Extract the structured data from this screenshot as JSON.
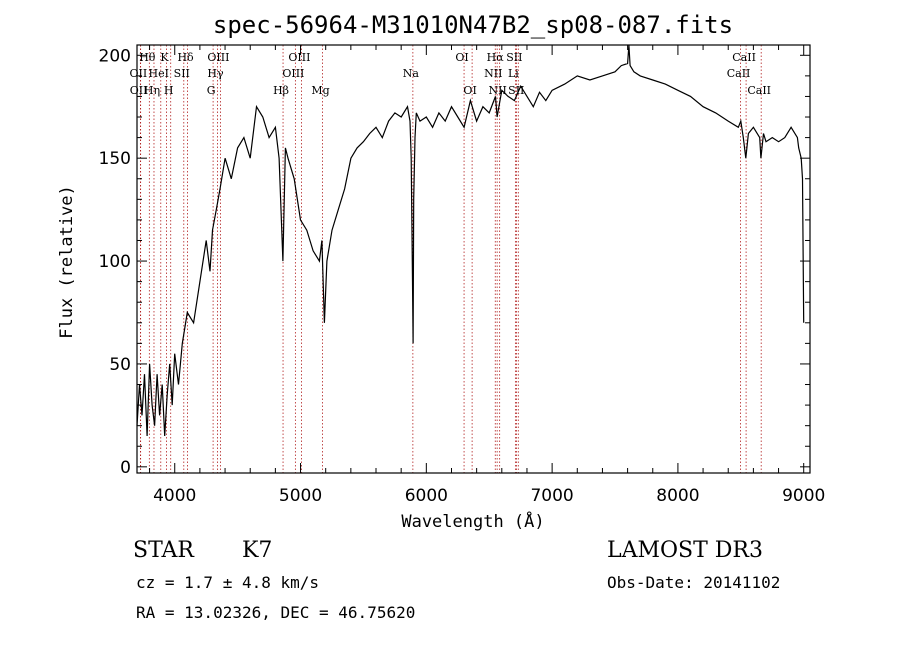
{
  "chart_data": {
    "type": "line",
    "title": "spec-56964-M31010N47B2_sp08-087.fits",
    "xlabel": "Wavelength (Å)",
    "ylabel": "Flux (relative)",
    "xlim": [
      3700,
      9050
    ],
    "ylim": [
      -3,
      205
    ],
    "x_ticks": [
      4000,
      5000,
      6000,
      7000,
      8000,
      9000
    ],
    "y_ticks": [
      0,
      50,
      100,
      150,
      200
    ],
    "grid": false,
    "line_color": "#000000",
    "marker_color": "#b22222",
    "series": [
      {
        "x": [
          3700,
          3720,
          3740,
          3760,
          3780,
          3800,
          3820,
          3840,
          3860,
          3880,
          3900,
          3920,
          3940,
          3960,
          3980,
          4000,
          4030,
          4060,
          4100,
          4150,
          4200,
          4250,
          4280,
          4300,
          4330,
          4360,
          4400,
          4450,
          4500,
          4550,
          4600,
          4650,
          4700,
          4750,
          4800,
          4830,
          4860,
          4880,
          4900,
          4950,
          5000,
          5050,
          5100,
          5150,
          5170,
          5190,
          5210,
          5250,
          5300,
          5350,
          5400,
          5450,
          5500,
          5550,
          5600,
          5650,
          5700,
          5750,
          5800,
          5850,
          5870,
          5880,
          5890,
          5895,
          5900,
          5910,
          5920,
          5950,
          6000,
          6050,
          6100,
          6150,
          6200,
          6250,
          6300,
          6350,
          6400,
          6450,
          6500,
          6550,
          6563,
          6600,
          6650,
          6700,
          6750,
          6800,
          6850,
          6900,
          6950,
          7000,
          7100,
          7200,
          7300,
          7400,
          7500,
          7550,
          7600,
          7610,
          7620,
          7650,
          7700,
          7800,
          7900,
          8000,
          8100,
          8200,
          8300,
          8400,
          8480,
          8500,
          8520,
          8540,
          8560,
          8600,
          8650,
          8660,
          8680,
          8700,
          8750,
          8800,
          8850,
          8900,
          8950,
          8960,
          8980,
          8990,
          9000
        ],
        "y": [
          20,
          40,
          25,
          45,
          15,
          50,
          30,
          20,
          45,
          25,
          40,
          15,
          35,
          50,
          30,
          55,
          40,
          60,
          75,
          70,
          90,
          110,
          95,
          115,
          125,
          135,
          150,
          140,
          155,
          160,
          150,
          175,
          170,
          160,
          165,
          150,
          100,
          155,
          150,
          140,
          120,
          115,
          105,
          100,
          110,
          70,
          100,
          115,
          125,
          135,
          150,
          155,
          158,
          162,
          165,
          160,
          168,
          172,
          170,
          175,
          168,
          150,
          90,
          60,
          130,
          160,
          172,
          168,
          170,
          165,
          172,
          168,
          175,
          170,
          165,
          178,
          168,
          175,
          172,
          180,
          170,
          183,
          180,
          178,
          185,
          180,
          175,
          182,
          178,
          183,
          186,
          190,
          188,
          190,
          192,
          195,
          196,
          205,
          195,
          192,
          190,
          188,
          186,
          183,
          180,
          175,
          172,
          168,
          165,
          168,
          160,
          150,
          162,
          165,
          160,
          150,
          162,
          158,
          160,
          158,
          160,
          165,
          160,
          155,
          150,
          140,
          70
        ]
      }
    ],
    "annotations": [
      {
        "label": "Hθ",
        "x": 3798,
        "row": 1
      },
      {
        "label": "OII",
        "x": 3727,
        "row": 2
      },
      {
        "label": "OII",
        "x": 3729,
        "row": 3
      },
      {
        "label": "Hη",
        "x": 3835,
        "row": 3
      },
      {
        "label": "K",
        "x": 3934,
        "row": 1
      },
      {
        "label": "HeI",
        "x": 3889,
        "row": 2
      },
      {
        "label": "H",
        "x": 3968,
        "row": 3
      },
      {
        "label": "Hδ",
        "x": 4102,
        "row": 1
      },
      {
        "label": "SII",
        "x": 4072,
        "row": 2
      },
      {
        "label": "OIII",
        "x": 4363,
        "row": 1
      },
      {
        "label": "Hγ",
        "x": 4340,
        "row": 2
      },
      {
        "label": "G",
        "x": 4305,
        "row": 3
      },
      {
        "label": "OIII",
        "x": 5007,
        "row": 1
      },
      {
        "label": "OIII",
        "x": 4959,
        "row": 2
      },
      {
        "label": "Hβ",
        "x": 4861,
        "row": 3
      },
      {
        "label": "Mg",
        "x": 5175,
        "row": 3
      },
      {
        "label": "Na",
        "x": 5893,
        "row": 2
      },
      {
        "label": "OI",
        "x": 6300,
        "row": 1
      },
      {
        "label": "OI",
        "x": 6364,
        "row": 3
      },
      {
        "label": "Hα",
        "x": 6563,
        "row": 1
      },
      {
        "label": "SII",
        "x": 6716,
        "row": 1
      },
      {
        "label": "NII",
        "x": 6548,
        "row": 2
      },
      {
        "label": "Li",
        "x": 6708,
        "row": 2
      },
      {
        "label": "NII",
        "x": 6583,
        "row": 3
      },
      {
        "label": "SII",
        "x": 6731,
        "row": 3
      },
      {
        "label": "CaII",
        "x": 8542,
        "row": 1
      },
      {
        "label": "CaII",
        "x": 8498,
        "row": 2
      },
      {
        "label": "CaII",
        "x": 8662,
        "row": 3
      }
    ]
  },
  "info": {
    "class_label": "STAR",
    "subclass_label": "K7",
    "cz": "cz = 1.7 ± 4.8 km/s",
    "radec": "RA =  13.02326, DEC =  46.75620",
    "survey": "LAMOST DR3",
    "obsdate": "Obs-Date: 20141102"
  }
}
